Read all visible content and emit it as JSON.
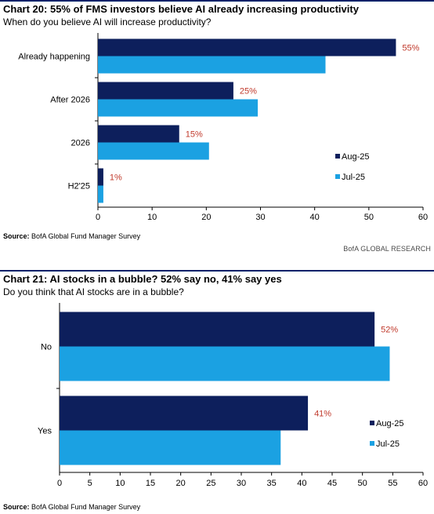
{
  "colors": {
    "aug": "#0d1f5c",
    "jul": "#1ba1e2",
    "label": "#c0392b",
    "axis": "#000000"
  },
  "chart_data": [
    {
      "type": "bar",
      "orientation": "horizontal",
      "title": "Chart 20: 55% of FMS investors believe AI already increasing productivity",
      "subtitle": "When do you believe AI will increase productivity?",
      "categories": [
        "Already happening",
        "After 2026",
        "2026",
        "H2'25"
      ],
      "series": [
        {
          "name": "Aug-25",
          "values": [
            55,
            25,
            15,
            1
          ]
        },
        {
          "name": "Jul-25",
          "values": [
            42,
            29.5,
            20.5,
            1
          ]
        }
      ],
      "data_labels": [
        "55%",
        "25%",
        "15%",
        "1%"
      ],
      "xlim": [
        0,
        60
      ],
      "xticks": [
        "0",
        "10",
        "20",
        "30",
        "40",
        "50",
        "60"
      ],
      "legend_position": "right",
      "source": "BofA Global Fund Manager Survey",
      "source_label": "Source:",
      "brand": "BofA GLOBAL RESEARCH"
    },
    {
      "type": "bar",
      "orientation": "horizontal",
      "title": "Chart 21: AI stocks in a bubble? 52% say no, 41% say yes",
      "subtitle": "Do you think that AI stocks are in a bubble?",
      "categories": [
        "No",
        "Yes"
      ],
      "series": [
        {
          "name": "Aug-25",
          "values": [
            52,
            41
          ]
        },
        {
          "name": "Jul-25",
          "values": [
            54.5,
            36.5
          ]
        }
      ],
      "data_labels": [
        "52%",
        "41%"
      ],
      "xlim": [
        0,
        60
      ],
      "xticks": [
        "0",
        "5",
        "10",
        "15",
        "20",
        "25",
        "30",
        "35",
        "40",
        "45",
        "50",
        "55",
        "60"
      ],
      "legend_position": "right",
      "source": "BofA Global Fund Manager Survey",
      "source_label": "Source:"
    }
  ]
}
